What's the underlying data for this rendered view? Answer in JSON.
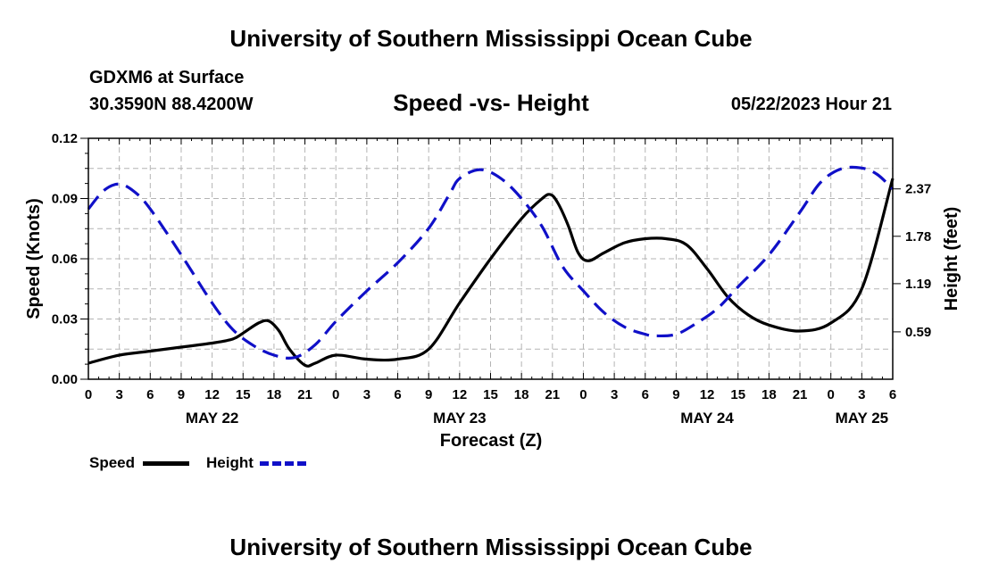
{
  "header": {
    "title": "University of Southern Mississippi Ocean Cube",
    "station": "GDXM6 at Surface",
    "coords": "30.3590N  88.4200W",
    "chart_title": "Speed -vs- Height",
    "valid_time": "05/22/2023 Hour 21"
  },
  "footer": {
    "title": "University of Southern Mississippi Ocean Cube"
  },
  "legend": {
    "speed_label": "Speed",
    "height_label": "Height",
    "speed_color": "#000000",
    "height_color": "#1010c8"
  },
  "chart_data": {
    "type": "line",
    "title": "Speed -vs- Height",
    "xlabel": "Forecast (Z)",
    "ylabel": "Speed (Knots)",
    "y2label": "Height (feet)",
    "x_range_hours": [
      0,
      78
    ],
    "x_ticks": [
      {
        "h": 0,
        "label": "0"
      },
      {
        "h": 3,
        "label": "3"
      },
      {
        "h": 6,
        "label": "6"
      },
      {
        "h": 9,
        "label": "9"
      },
      {
        "h": 12,
        "label": "12"
      },
      {
        "h": 15,
        "label": "15"
      },
      {
        "h": 18,
        "label": "18"
      },
      {
        "h": 21,
        "label": "21"
      },
      {
        "h": 24,
        "label": "0"
      },
      {
        "h": 27,
        "label": "3"
      },
      {
        "h": 30,
        "label": "6"
      },
      {
        "h": 33,
        "label": "9"
      },
      {
        "h": 36,
        "label": "12"
      },
      {
        "h": 39,
        "label": "15"
      },
      {
        "h": 42,
        "label": "18"
      },
      {
        "h": 45,
        "label": "21"
      },
      {
        "h": 48,
        "label": "0"
      },
      {
        "h": 51,
        "label": "3"
      },
      {
        "h": 54,
        "label": "6"
      },
      {
        "h": 57,
        "label": "9"
      },
      {
        "h": 60,
        "label": "12"
      },
      {
        "h": 63,
        "label": "15"
      },
      {
        "h": 66,
        "label": "18"
      },
      {
        "h": 69,
        "label": "21"
      },
      {
        "h": 72,
        "label": "0"
      },
      {
        "h": 75,
        "label": "3"
      },
      {
        "h": 78,
        "label": "6"
      }
    ],
    "date_labels": [
      {
        "h": 12,
        "label": "MAY 22"
      },
      {
        "h": 36,
        "label": "MAY 23"
      },
      {
        "h": 60,
        "label": "MAY 24"
      },
      {
        "h": 75,
        "label": "MAY 25"
      }
    ],
    "y_left": {
      "range": [
        0,
        0.12
      ],
      "ticks": [
        0,
        0.03,
        0.06,
        0.09,
        0.12
      ],
      "tick_labels": [
        "0.00",
        "0.03",
        "0.06",
        "0.09",
        "0.12"
      ]
    },
    "y_right": {
      "range": [
        0,
        3.0
      ],
      "ticks": [
        0.59,
        1.19,
        1.78,
        2.37
      ],
      "tick_labels": [
        "0.59",
        "1.19",
        "1.78",
        "2.37"
      ]
    },
    "series": [
      {
        "name": "Speed",
        "axis": "left",
        "style": "solid",
        "points": [
          [
            0,
            0.008
          ],
          [
            3,
            0.012
          ],
          [
            6,
            0.014
          ],
          [
            9,
            0.016
          ],
          [
            12,
            0.018
          ],
          [
            14,
            0.02
          ],
          [
            15,
            0.023
          ],
          [
            16.5,
            0.028
          ],
          [
            17.5,
            0.029
          ],
          [
            18.5,
            0.024
          ],
          [
            19.5,
            0.015
          ],
          [
            21,
            0.007
          ],
          [
            22,
            0.008
          ],
          [
            24,
            0.012
          ],
          [
            27,
            0.01
          ],
          [
            30,
            0.01
          ],
          [
            33,
            0.015
          ],
          [
            36,
            0.038
          ],
          [
            39,
            0.06
          ],
          [
            42,
            0.08
          ],
          [
            44,
            0.09
          ],
          [
            44.8,
            0.092
          ],
          [
            45.5,
            0.088
          ],
          [
            46.5,
            0.077
          ],
          [
            47.5,
            0.063
          ],
          [
            48.5,
            0.059
          ],
          [
            50,
            0.063
          ],
          [
            52,
            0.068
          ],
          [
            54,
            0.07
          ],
          [
            56,
            0.07
          ],
          [
            58,
            0.067
          ],
          [
            60,
            0.055
          ],
          [
            62,
            0.041
          ],
          [
            64,
            0.032
          ],
          [
            66,
            0.027
          ],
          [
            69,
            0.024
          ],
          [
            72,
            0.028
          ],
          [
            75,
            0.045
          ],
          [
            78,
            0.1
          ]
        ]
      },
      {
        "name": "Height",
        "axis": "right",
        "style": "dashed",
        "points": [
          [
            0,
            2.12
          ],
          [
            1.5,
            2.35
          ],
          [
            3,
            2.43
          ],
          [
            4.5,
            2.33
          ],
          [
            6,
            2.12
          ],
          [
            9,
            1.55
          ],
          [
            12,
            0.95
          ],
          [
            14,
            0.62
          ],
          [
            16,
            0.42
          ],
          [
            18,
            0.3
          ],
          [
            20,
            0.27
          ],
          [
            22,
            0.43
          ],
          [
            24,
            0.72
          ],
          [
            27,
            1.1
          ],
          [
            30,
            1.45
          ],
          [
            33,
            1.88
          ],
          [
            35,
            2.3
          ],
          [
            36,
            2.5
          ],
          [
            38,
            2.61
          ],
          [
            40,
            2.5
          ],
          [
            42,
            2.25
          ],
          [
            44,
            1.9
          ],
          [
            46,
            1.4
          ],
          [
            48,
            1.1
          ],
          [
            50,
            0.83
          ],
          [
            52,
            0.65
          ],
          [
            54,
            0.56
          ],
          [
            55,
            0.54
          ],
          [
            57,
            0.56
          ],
          [
            59,
            0.7
          ],
          [
            61,
            0.88
          ],
          [
            63,
            1.15
          ],
          [
            66,
            1.55
          ],
          [
            69,
            2.08
          ],
          [
            71,
            2.45
          ],
          [
            73,
            2.62
          ],
          [
            75,
            2.63
          ],
          [
            76.5,
            2.55
          ],
          [
            78,
            2.37
          ]
        ]
      }
    ],
    "grid": true
  }
}
